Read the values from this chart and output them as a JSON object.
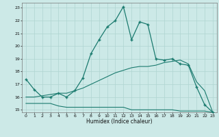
{
  "xlabel": "Humidex (Indice chaleur)",
  "bg_color": "#cce9e7",
  "grid_color": "#afd4d1",
  "line_color": "#1a7a6e",
  "xlim": [
    -0.5,
    23.5
  ],
  "ylim": [
    14.8,
    23.4
  ],
  "yticks": [
    15,
    16,
    17,
    18,
    19,
    20,
    21,
    22,
    23
  ],
  "xticks": [
    0,
    1,
    2,
    3,
    4,
    5,
    6,
    7,
    8,
    9,
    10,
    11,
    12,
    13,
    14,
    15,
    16,
    17,
    18,
    19,
    20,
    21,
    22,
    23
  ],
  "main_x": [
    0,
    1,
    2,
    3,
    4,
    5,
    6,
    7,
    8,
    9,
    10,
    11,
    12,
    13,
    14,
    15,
    16,
    17,
    18,
    19,
    20,
    21,
    22,
    23
  ],
  "main_y": [
    17.4,
    16.6,
    16.0,
    16.0,
    16.3,
    16.0,
    16.5,
    17.5,
    19.4,
    20.5,
    21.5,
    22.0,
    23.1,
    20.5,
    21.9,
    21.7,
    19.0,
    18.9,
    19.0,
    18.6,
    18.5,
    16.8,
    15.4,
    14.8
  ],
  "line2_x": [
    0,
    1,
    2,
    3,
    4,
    5,
    6,
    7,
    8,
    9,
    10,
    11,
    12,
    13,
    14,
    15,
    16,
    17,
    18,
    19,
    20,
    21,
    22,
    23
  ],
  "line2_y": [
    15.5,
    15.5,
    15.5,
    15.5,
    15.3,
    15.2,
    15.2,
    15.2,
    15.2,
    15.2,
    15.2,
    15.2,
    15.2,
    15.0,
    15.0,
    15.0,
    15.0,
    15.0,
    15.0,
    14.9,
    14.9,
    14.9,
    14.9,
    14.8
  ],
  "line3_x": [
    0,
    1,
    2,
    3,
    4,
    5,
    6,
    7,
    8,
    9,
    10,
    11,
    12,
    13,
    14,
    15,
    16,
    17,
    18,
    19,
    20,
    21,
    22,
    23
  ],
  "line3_y": [
    16.0,
    16.0,
    16.1,
    16.2,
    16.3,
    16.3,
    16.5,
    16.7,
    17.0,
    17.3,
    17.6,
    17.9,
    18.1,
    18.3,
    18.4,
    18.4,
    18.5,
    18.7,
    18.8,
    18.9,
    18.6,
    17.2,
    16.5,
    14.8
  ]
}
